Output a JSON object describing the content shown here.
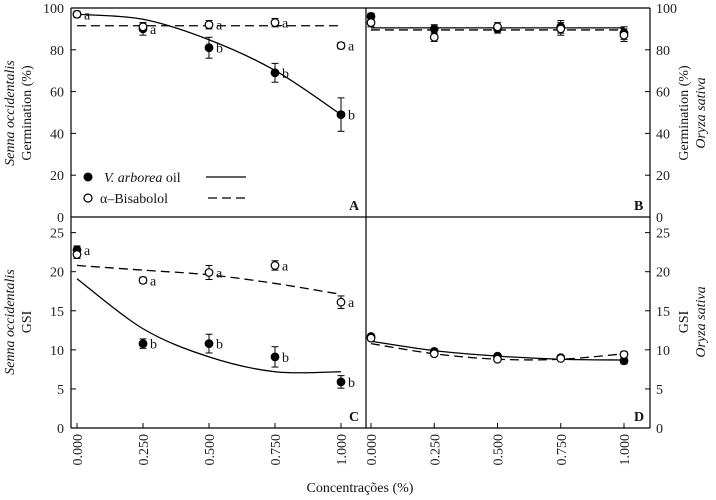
{
  "xlabel": "Concentrações (%)",
  "x_ticks": [
    "0.000",
    "0.250",
    "0.500",
    "0.750",
    "1.000"
  ],
  "legend": {
    "filled_label_species": "V. arborea",
    "filled_label_suffix": " oil",
    "open_label": "α–Bisabolol"
  },
  "colors": {
    "axis": "#000000",
    "marker_open": "#ffffff",
    "marker_filled": "#000000"
  },
  "chart_data": [
    {
      "type": "scatter",
      "panel": "A",
      "ylabel_species": "Senna occidentalis",
      "ylabel": "Germination (%)",
      "ylim": [
        0,
        100
      ],
      "y_ticks": [
        "0",
        "20",
        "40",
        "60",
        "80",
        "100"
      ],
      "x": [
        0,
        0.25,
        0.5,
        0.75,
        1.0
      ],
      "series": [
        {
          "name": "V. arborea oil",
          "marker": "filled",
          "values": [
            97,
            90,
            81,
            69,
            49
          ],
          "errors": [
            1.5,
            3,
            5,
            4.5,
            8
          ],
          "letters": [
            "a",
            "a",
            "b",
            "b",
            "b"
          ],
          "fit_line": "solid",
          "fit_values": [
            97,
            94.6,
            84.8,
            70.1,
            49
          ]
        },
        {
          "name": "α–Bisabolol",
          "marker": "open",
          "values": [
            97,
            91,
            92,
            93,
            82
          ],
          "errors": [
            1,
            2,
            2,
            2,
            1.5
          ],
          "letters": [
            "",
            "",
            "a",
            "a",
            "a"
          ],
          "fit_line": "dashed",
          "fit_values": [
            91.5,
            91.5,
            91.5,
            91.5,
            91.5
          ]
        }
      ]
    },
    {
      "type": "scatter",
      "panel": "B",
      "ylabel_species": "Oryza sativa",
      "ylabel": "Germination (%)",
      "ylim": [
        0,
        100
      ],
      "y_ticks": [
        "0",
        "20",
        "40",
        "60",
        "80",
        "100"
      ],
      "x": [
        0,
        0.25,
        0.5,
        0.75,
        1.0
      ],
      "series": [
        {
          "name": "V. arborea oil",
          "marker": "filled",
          "values": [
            96,
            90,
            90,
            91,
            88
          ],
          "errors": [
            1.5,
            2,
            2,
            3,
            3
          ],
          "letters": [
            "",
            "",
            "",
            "",
            ""
          ],
          "fit_line": "solid",
          "fit_values": [
            90.5,
            90.5,
            90.5,
            90.5,
            90.5
          ]
        },
        {
          "name": "α–Bisabolol",
          "marker": "open",
          "values": [
            93,
            86,
            91,
            90,
            87
          ],
          "errors": [
            2,
            2,
            2,
            3,
            3
          ],
          "letters": [
            "",
            "",
            "",
            "",
            ""
          ],
          "fit_line": "dashed",
          "fit_values": [
            89.5,
            89.5,
            89.5,
            89.5,
            89.5
          ]
        }
      ]
    },
    {
      "type": "scatter",
      "panel": "C",
      "ylabel_species": "Senna occidentalis",
      "ylabel": "GSI",
      "ylim": [
        0,
        27
      ],
      "y_ticks": [
        "0",
        "5",
        "10",
        "15",
        "20",
        "25"
      ],
      "x": [
        0,
        0.25,
        0.5,
        0.75,
        1.0
      ],
      "series": [
        {
          "name": "V. arborea oil",
          "marker": "filled",
          "values": [
            22.8,
            10.8,
            10.8,
            9.1,
            5.9
          ],
          "errors": [
            0.5,
            0.6,
            1.2,
            1.3,
            0.8
          ],
          "letters": [
            "a",
            "b",
            "b",
            "b",
            "b"
          ],
          "fit_line": "solid",
          "fit_values": [
            19.1,
            12.7,
            9.1,
            7.2,
            7.2
          ]
        },
        {
          "name": "α–Bisabolol",
          "marker": "open",
          "values": [
            22.2,
            18.9,
            19.9,
            20.8,
            16.1
          ],
          "errors": [
            0.5,
            0.4,
            0.9,
            0.6,
            0.8
          ],
          "letters": [
            "",
            "a",
            "a",
            "a",
            "a"
          ],
          "fit_line": "dashed",
          "fit_values": [
            20.8,
            20.2,
            19.6,
            18.5,
            17.1
          ]
        }
      ]
    },
    {
      "type": "scatter",
      "panel": "D",
      "ylabel_species": "Oryza sativa",
      "ylabel": "GSI",
      "ylim": [
        0,
        27
      ],
      "y_ticks": [
        "0",
        "5",
        "10",
        "15",
        "20",
        "25"
      ],
      "x": [
        0,
        0.25,
        0.5,
        0.75,
        1.0
      ],
      "series": [
        {
          "name": "V. arborea oil",
          "marker": "filled",
          "values": [
            11.7,
            9.8,
            9.2,
            9.0,
            8.6
          ],
          "errors": [
            0.3,
            0.3,
            0.3,
            0.3,
            0.4
          ],
          "letters": [
            "",
            "",
            "",
            "",
            ""
          ],
          "fit_line": "solid",
          "fit_values": [
            11.1,
            9.9,
            9.2,
            8.8,
            8.7
          ]
        },
        {
          "name": "α–Bisabolol",
          "marker": "open",
          "values": [
            11.5,
            9.5,
            8.8,
            8.9,
            9.4
          ],
          "errors": [
            0.3,
            0.3,
            0.3,
            0.3,
            0.4
          ],
          "letters": [
            "",
            "",
            "",
            "",
            ""
          ],
          "fit_line": "dashed",
          "fit_values": [
            10.8,
            9.5,
            8.8,
            8.8,
            9.5
          ]
        }
      ]
    }
  ]
}
